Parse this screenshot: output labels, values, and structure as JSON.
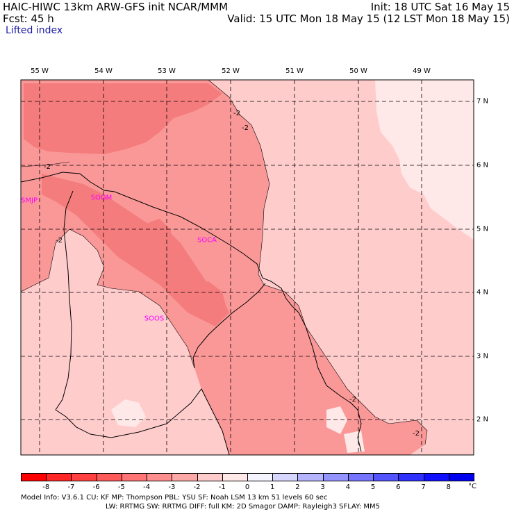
{
  "header": {
    "model_line": "HAIC-HIWC 13km ARW-GFS init   NCAR/MMM",
    "fcst_line": "Fcst:   45 h",
    "field": "Lifted index",
    "init_line": "Init: 18 UTC Sat 16 May 15",
    "valid_line": "Valid: 15 UTC Mon 18 May 15 (12 LST Mon 18 May 15)"
  },
  "longitude_labels": [
    "55 W",
    "54 W",
    "53 W",
    "52 W",
    "51 W",
    "50 W",
    "49 W"
  ],
  "latitude_labels": [
    "7 N",
    "6 N",
    "5 N",
    "4 N",
    "3 N",
    "2 N"
  ],
  "stations": [
    "SMJP",
    "SOGM",
    "SOCA",
    "SOOS"
  ],
  "contour_labels": [
    "-2",
    "-2",
    "-2",
    "-2",
    "-2",
    "-2"
  ],
  "colorbar": {
    "labels": [
      "-8",
      "-7",
      "-6",
      "-5",
      "-4",
      "-3",
      "-2",
      "-1",
      "0",
      "1",
      "2",
      "3",
      "4",
      "5",
      "6",
      "7",
      "8"
    ],
    "unit": "°C",
    "colors": [
      "#ff0000",
      "#ff2626",
      "#ff4040",
      "#ff5a5a",
      "#ff7474",
      "#ff8e8e",
      "#ffa8a8",
      "#ffcccc",
      "#ffe8e8",
      "#f4f4ff",
      "#d6d6ff",
      "#b4b4ff",
      "#9494ff",
      "#7474ff",
      "#5454ff",
      "#3030ff",
      "#1010ff",
      "#0000f0"
    ]
  },
  "map_colors": {
    "li_minus3_to_minus4": "#f47c7c",
    "li_minus2_to_minus3": "#fa9898",
    "li_minus1_to_minus2": "#ffcccc",
    "li_0_to_minus1": "#ffe8e8"
  },
  "footer": {
    "line1": "Model Info: V3.6.1    CU: KF       MP: Thompson     PBL: YSU       SF: Noah LSM     13 km    51 levels   60 sec",
    "line2": "LW: RRTMG    SW: RRTMG   DIFF: full    KM: 2D Smagor DAMP: Rayleigh3  SFLAY: MM5"
  }
}
